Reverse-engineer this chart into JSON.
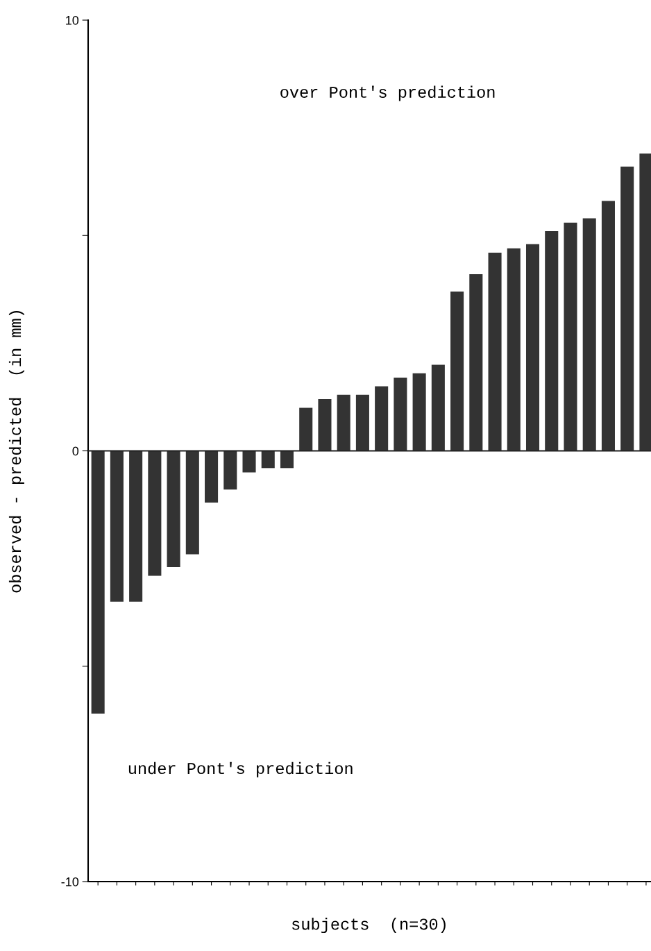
{
  "chart_data": {
    "type": "bar",
    "xlabel": "subjects  (n=30)",
    "ylabel": "observed - predicted  (in mm)",
    "categories": [
      null,
      null,
      null,
      null,
      null,
      null,
      null,
      null,
      null,
      null,
      null,
      null,
      null,
      null,
      null,
      null,
      null,
      null,
      null,
      null,
      null,
      null,
      null,
      null,
      null,
      null,
      null,
      null,
      null,
      null
    ],
    "values": [
      -6.1,
      -3.5,
      -3.5,
      -2.9,
      -2.7,
      -2.4,
      -1.2,
      -0.9,
      -0.5,
      -0.4,
      -0.4,
      1.0,
      1.2,
      1.3,
      1.3,
      1.5,
      1.7,
      1.8,
      2.0,
      3.7,
      4.1,
      4.6,
      4.7,
      4.8,
      5.1,
      5.3,
      5.4,
      5.8,
      6.6,
      6.9
    ],
    "color": "#333333",
    "ylim": [
      -10,
      10
    ],
    "yticks": [
      -10,
      {
        "value": -5,
        "label": null
      },
      0,
      {
        "value": 5,
        "label": null
      },
      10
    ],
    "ref_lines": [
      {
        "axis": "y",
        "value": 0,
        "color": "#222222"
      }
    ],
    "annotations": [
      "over Pont's prediction",
      "under Pont's prediction"
    ],
    "grid": false,
    "legend": false
  }
}
